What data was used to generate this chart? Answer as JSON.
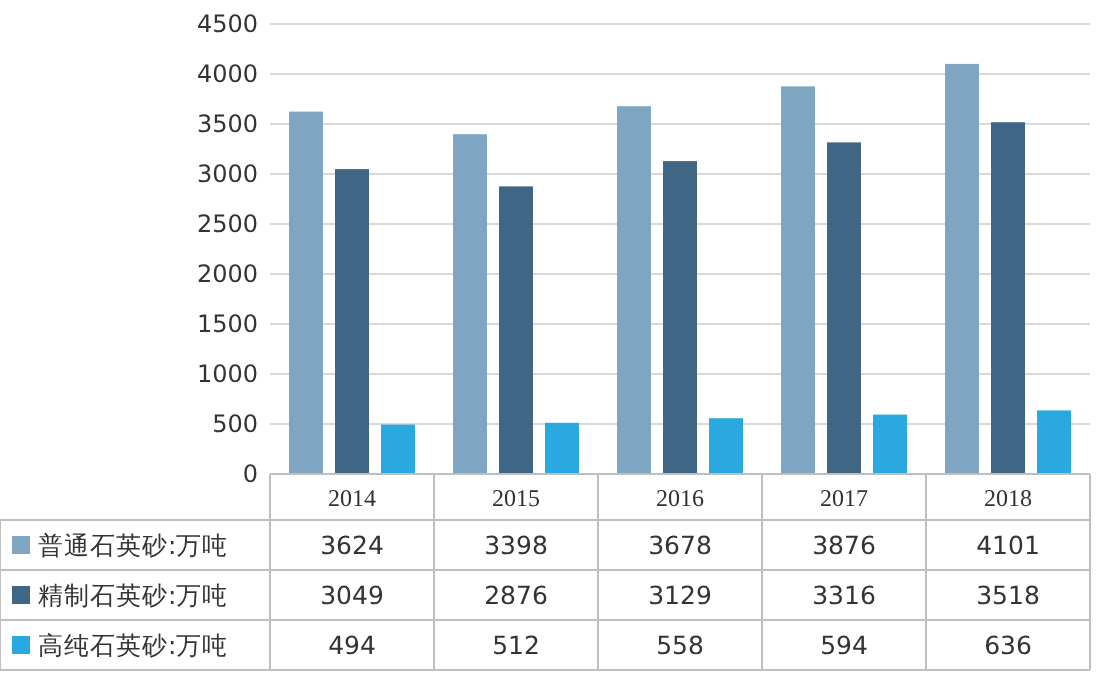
{
  "chart_data": {
    "type": "bar",
    "categories": [
      "2014",
      "2015",
      "2016",
      "2017",
      "2018"
    ],
    "series": [
      {
        "name": "普通石英砂:万吨",
        "color": "#7ea6c2",
        "values": [
          3624,
          3398,
          3678,
          3876,
          4101
        ]
      },
      {
        "name": "精制石英砂:万吨",
        "color": "#3f6684",
        "values": [
          3049,
          2876,
          3129,
          3316,
          3518
        ]
      },
      {
        "name": "高纯石英砂:万吨",
        "color": "#2aa9e0",
        "values": [
          494,
          512,
          558,
          594,
          636
        ]
      }
    ],
    "ylim": [
      0,
      4500
    ],
    "yticks": [
      0,
      500,
      1000,
      1500,
      2000,
      2500,
      3000,
      3500,
      4000,
      4500
    ],
    "grid": "y",
    "data_labels": true,
    "legend": "bottom"
  }
}
